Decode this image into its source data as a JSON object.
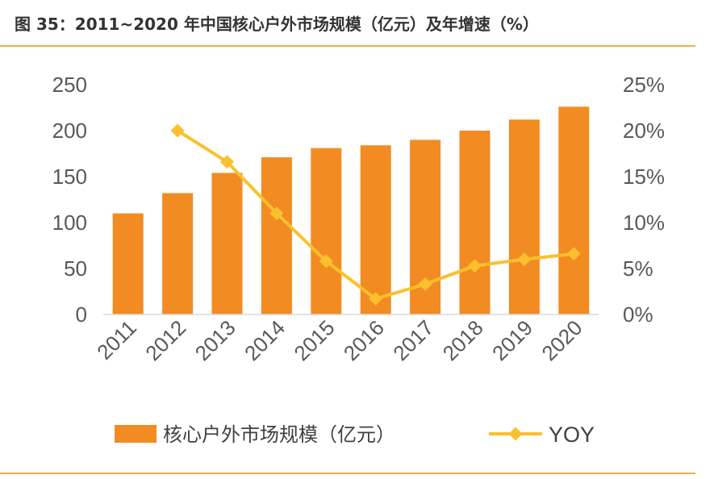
{
  "title": "图  35：2011~2020 年中国核心户外市场规模（亿元）及年增速（%）",
  "colors": {
    "bar": "#f28b22",
    "line": "#fbc02d",
    "axis": "#d9d9d9",
    "rule": "#f0ad4e"
  },
  "chart_data": {
    "type": "bar",
    "categories": [
      "2011",
      "2012",
      "2013",
      "2014",
      "2015",
      "2016",
      "2017",
      "2018",
      "2019",
      "2020"
    ],
    "series": [
      {
        "name": "核心户外市场规模（亿元）",
        "type": "bar",
        "axis": "left",
        "values": [
          110,
          132,
          154,
          171,
          181,
          184,
          190,
          200,
          212,
          226
        ]
      },
      {
        "name": "YOY",
        "type": "line",
        "axis": "right",
        "values": [
          null,
          20.0,
          16.6,
          11.0,
          5.8,
          1.7,
          3.3,
          5.3,
          6.0,
          6.6
        ]
      }
    ],
    "ylim_left": [
      0,
      250
    ],
    "ylim_right": [
      0,
      25
    ],
    "yticks_left": [
      "0",
      "50",
      "100",
      "150",
      "200",
      "250"
    ],
    "yticks_right": [
      "0%",
      "5%",
      "10%",
      "15%",
      "20%",
      "25%"
    ],
    "grid": false,
    "legend_position": "bottom"
  }
}
